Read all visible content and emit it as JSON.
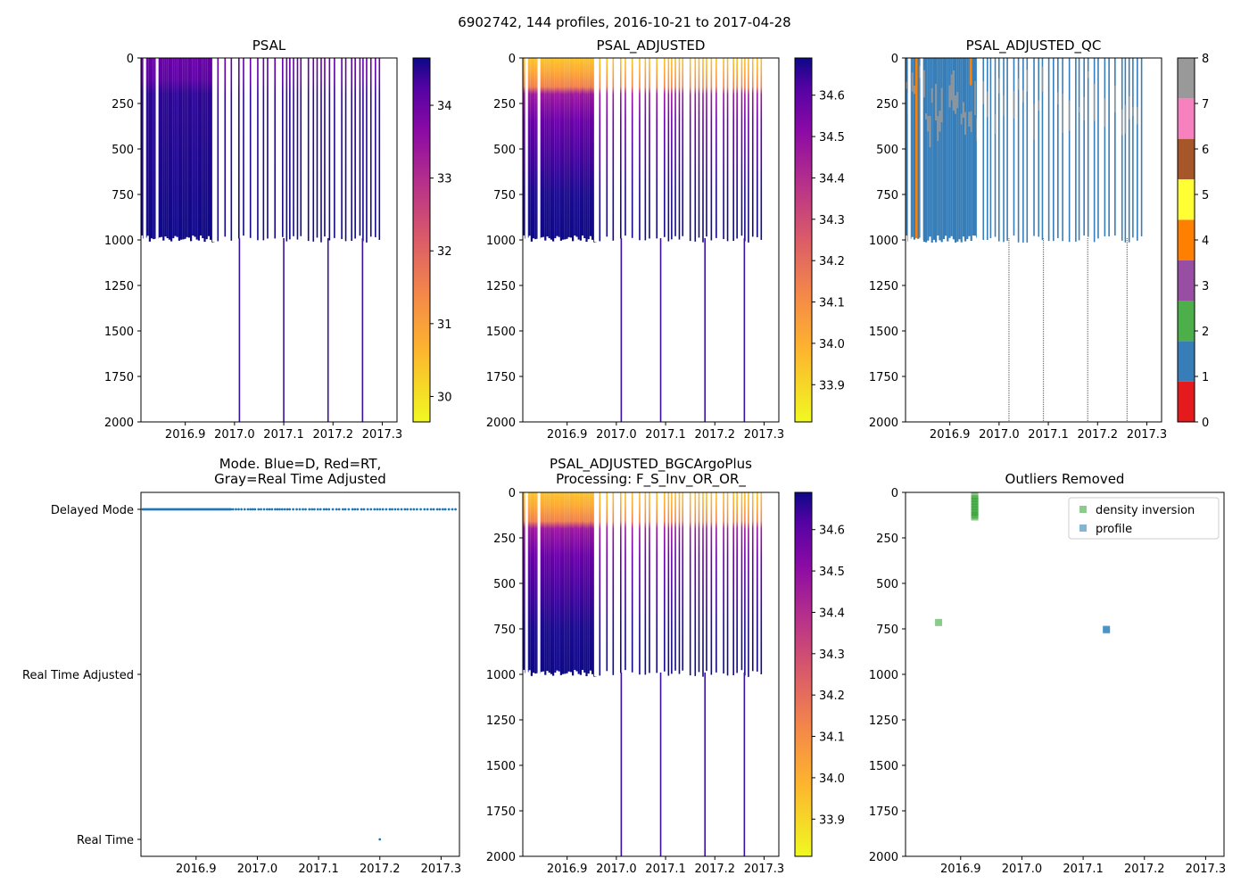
{
  "figure": {
    "suptitle": "6902742, 144 profiles, 2016-10-21 to 2017-04-28"
  },
  "chart_data": [
    {
      "id": "psal",
      "type": "heatmap",
      "title": "PSAL",
      "x_ticks": [
        "2016.9",
        "2017.0",
        "2017.1",
        "2017.2",
        "2017.3"
      ],
      "x_tick_values": [
        2016.9,
        2017.0,
        2017.1,
        2017.2,
        2017.3
      ],
      "xlim": [
        2016.81,
        2017.33
      ],
      "y_ticks": [
        "0",
        "250",
        "500",
        "750",
        "1000",
        "1250",
        "1500",
        "1750",
        "2000"
      ],
      "y_tick_values": [
        0,
        250,
        500,
        750,
        1000,
        1250,
        1500,
        1750,
        2000
      ],
      "ylim": [
        2000,
        0
      ],
      "profile_max_depth": 990,
      "deep_profiles": [
        2017.01,
        2017.1,
        2017.19,
        2017.26
      ],
      "deep_depth": 2000,
      "colormap": "plasma_r",
      "colorbar_ticks": [
        "30",
        "31",
        "32",
        "33",
        "34"
      ],
      "colorbar_tick_values": [
        30,
        31,
        32,
        33,
        34
      ],
      "colorbar_range": [
        29.65,
        34.65
      ],
      "surface_value": 33.9,
      "deep_value": 34.6
    },
    {
      "id": "psal_adjusted",
      "type": "heatmap",
      "title": "PSAL_ADJUSTED",
      "x_ticks": [
        "2016.9",
        "2017.0",
        "2017.1",
        "2017.2",
        "2017.3"
      ],
      "x_tick_values": [
        2016.9,
        2017.0,
        2017.1,
        2017.2,
        2017.3
      ],
      "xlim": [
        2016.81,
        2017.33
      ],
      "y_ticks": [
        "0",
        "250",
        "500",
        "750",
        "1000",
        "1250",
        "1500",
        "1750",
        "2000"
      ],
      "y_tick_values": [
        0,
        250,
        500,
        750,
        1000,
        1250,
        1500,
        1750,
        2000
      ],
      "ylim": [
        2000,
        0
      ],
      "profile_max_depth": 990,
      "deep_profiles": [
        2017.01,
        2017.09,
        2017.18,
        2017.26
      ],
      "deep_depth": 2000,
      "colormap": "plasma_r",
      "colorbar_ticks": [
        "33.9",
        "34.0",
        "34.1",
        "34.2",
        "34.3",
        "34.4",
        "34.5",
        "34.6"
      ],
      "colorbar_tick_values": [
        33.9,
        34.0,
        34.1,
        34.2,
        34.3,
        34.4,
        34.5,
        34.6
      ],
      "colorbar_range": [
        33.81,
        34.69
      ],
      "surface_value": 33.9,
      "deep_value": 34.65
    },
    {
      "id": "psal_adjusted_qc",
      "type": "heatmap",
      "title": "PSAL_ADJUSTED_QC",
      "x_ticks": [
        "2016.9",
        "2017.0",
        "2017.1",
        "2017.2",
        "2017.3"
      ],
      "x_tick_values": [
        2016.9,
        2017.0,
        2017.1,
        2017.2,
        2017.3
      ],
      "xlim": [
        2016.81,
        2017.33
      ],
      "y_ticks": [
        "0",
        "250",
        "500",
        "750",
        "1000",
        "1250",
        "1500",
        "1750",
        "2000"
      ],
      "y_tick_values": [
        0,
        250,
        500,
        750,
        1000,
        1250,
        1500,
        1750,
        2000
      ],
      "ylim": [
        2000,
        0
      ],
      "profile_max_depth": 990,
      "deep_profiles": [
        2017.02,
        2017.09,
        2017.18,
        2017.26
      ],
      "deep_depth": 2000,
      "colorbar_ticks": [
        "0",
        "1",
        "2",
        "3",
        "4",
        "5",
        "6",
        "7",
        "8"
      ],
      "colorbar_tick_values": [
        0,
        1,
        2,
        3,
        4,
        5,
        6,
        7,
        8
      ],
      "qc_colors": [
        "#e41a1c",
        "#377eb8",
        "#4daf4a",
        "#984ea3",
        "#ff7f00",
        "#ffff33",
        "#a65628",
        "#f781bf",
        "#999999"
      ],
      "dominant_flag": 1,
      "flag8_near_surface": true,
      "flag4_profiles": [
        2016.83,
        2016.94
      ]
    },
    {
      "id": "mode",
      "type": "scatter",
      "title": "Mode. Blue=D, Red=RT,\nGray=Real Time Adjusted",
      "x_ticks": [
        "2016.9",
        "2017.0",
        "2017.1",
        "2017.2",
        "2017.3"
      ],
      "x_tick_values": [
        2016.9,
        2017.0,
        2017.1,
        2017.2,
        2017.3
      ],
      "xlim": [
        2016.81,
        2017.33
      ],
      "y_categories": [
        "Delayed Mode",
        "Real Time Adjusted",
        "Real Time"
      ],
      "series": [
        {
          "name": "Delayed Mode",
          "x_range": [
            2016.81,
            2017.33
          ],
          "y": "Delayed Mode",
          "color": "#1f77b4"
        },
        {
          "name": "Real Time",
          "x": [
            2017.2
          ],
          "y": "Real Time",
          "color": "#1f77b4"
        }
      ]
    },
    {
      "id": "psal_bgc",
      "type": "heatmap",
      "title": "PSAL_ADJUSTED_BGCArgoPlus\nProcessing: F_S_Inv_OR_OR_",
      "x_ticks": [
        "2016.9",
        "2017.0",
        "2017.1",
        "2017.2",
        "2017.3"
      ],
      "x_tick_values": [
        2016.9,
        2017.0,
        2017.1,
        2017.2,
        2017.3
      ],
      "xlim": [
        2016.81,
        2017.33
      ],
      "y_ticks": [
        "0",
        "250",
        "500",
        "750",
        "1000",
        "1250",
        "1500",
        "1750",
        "2000"
      ],
      "y_tick_values": [
        0,
        250,
        500,
        750,
        1000,
        1250,
        1500,
        1750,
        2000
      ],
      "ylim": [
        2000,
        0
      ],
      "profile_max_depth": 990,
      "deep_profiles": [
        2017.01,
        2017.09,
        2017.18,
        2017.26
      ],
      "deep_depth": 2000,
      "colormap": "plasma_r",
      "colorbar_ticks": [
        "33.9",
        "34.0",
        "34.1",
        "34.2",
        "34.3",
        "34.4",
        "34.5",
        "34.6"
      ],
      "colorbar_tick_values": [
        33.9,
        34.0,
        34.1,
        34.2,
        34.3,
        34.4,
        34.5,
        34.6
      ],
      "colorbar_range": [
        33.81,
        34.69
      ],
      "surface_value": 33.9,
      "deep_value": 34.65
    },
    {
      "id": "outliers",
      "type": "scatter",
      "title": "Outliers Removed",
      "x_ticks": [
        "2016.9",
        "2017.0",
        "2017.1",
        "2017.2",
        "2017.3"
      ],
      "x_tick_values": [
        2016.9,
        2017.0,
        2017.1,
        2017.2,
        2017.3
      ],
      "xlim": [
        2016.81,
        2017.33
      ],
      "y_ticks": [
        "0",
        "250",
        "500",
        "750",
        "1000",
        "1250",
        "1500",
        "1750",
        "2000"
      ],
      "y_tick_values": [
        0,
        250,
        500,
        750,
        1000,
        1250,
        1500,
        1750,
        2000
      ],
      "ylim": [
        2000,
        0
      ],
      "legend": {
        "position": "upper right",
        "entries": [
          "density inversion",
          "profile"
        ]
      },
      "series": [
        {
          "name": "density inversion",
          "color": "#2ca02c",
          "alpha": 0.55,
          "points": [
            [
              2016.864,
              715
            ],
            [
              2016.923,
              20
            ],
            [
              2016.923,
              35
            ],
            [
              2016.923,
              50
            ],
            [
              2016.923,
              65
            ],
            [
              2016.923,
              80
            ],
            [
              2016.923,
              95
            ],
            [
              2016.923,
              110
            ],
            [
              2016.923,
              125
            ],
            [
              2016.923,
              135
            ]
          ]
        },
        {
          "name": "profile",
          "color": "#1f77b4",
          "alpha": 0.55,
          "points": [
            [
              2017.138,
              752
            ],
            [
              2017.138,
              756
            ]
          ]
        }
      ]
    }
  ]
}
